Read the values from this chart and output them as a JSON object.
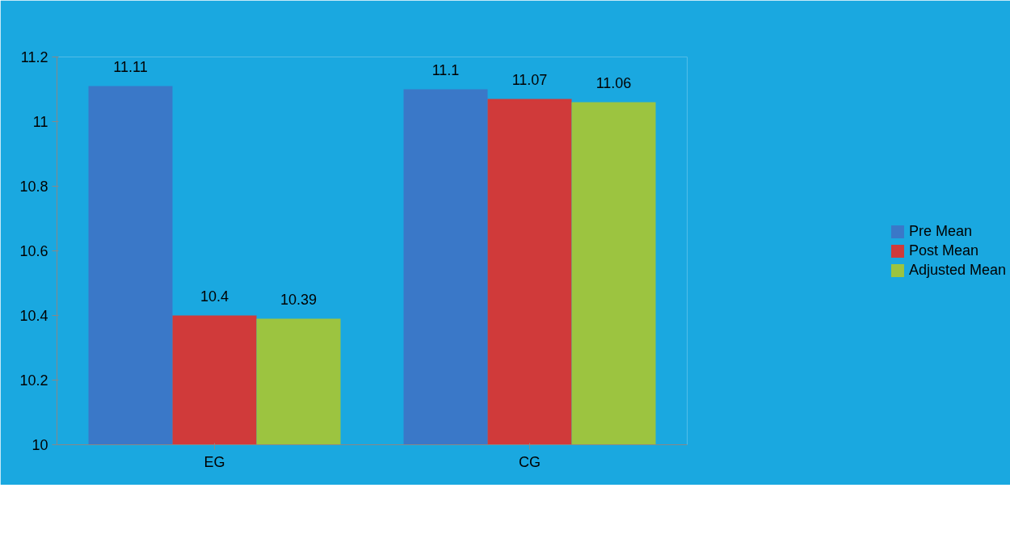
{
  "chart_data": {
    "type": "bar",
    "categories": [
      "EG",
      "CG"
    ],
    "series": [
      {
        "name": "Pre Mean",
        "color": "#3a78c8",
        "values": [
          11.11,
          11.1
        ]
      },
      {
        "name": "Post Mean",
        "color": "#d03a3a",
        "values": [
          10.4,
          11.07
        ]
      },
      {
        "name": "Adjusted Mean",
        "color": "#9cc440",
        "values": [
          10.39,
          11.06
        ]
      }
    ],
    "ylim": [
      10,
      11.2
    ],
    "yticks": [
      10,
      10.2,
      10.4,
      10.6,
      10.8,
      11,
      11.2
    ],
    "grid": false,
    "legend": "right",
    "data_labels": true
  }
}
